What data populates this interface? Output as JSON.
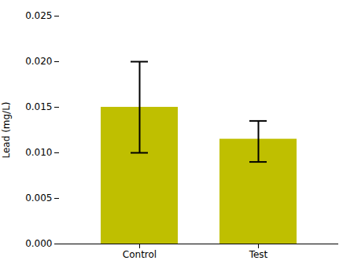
{
  "chart_data": {
    "type": "bar",
    "categories": [
      "Control",
      "Test"
    ],
    "values": [
      0.015,
      0.0115
    ],
    "errors_upper": [
      0.005,
      0.002
    ],
    "errors_lower": [
      0.005,
      0.0025
    ],
    "color": "#BFBF00",
    "ylabel": "Lead (mg/L)",
    "ylim": [
      0.0,
      0.025
    ],
    "yticks": [
      {
        "value": 0,
        "label": "0.000"
      },
      0.005,
      {
        "value": 0.01,
        "label": "0.010"
      },
      0.015,
      {
        "value": 0.02,
        "label": "0.020"
      },
      0.025
    ],
    "grid": false
  }
}
